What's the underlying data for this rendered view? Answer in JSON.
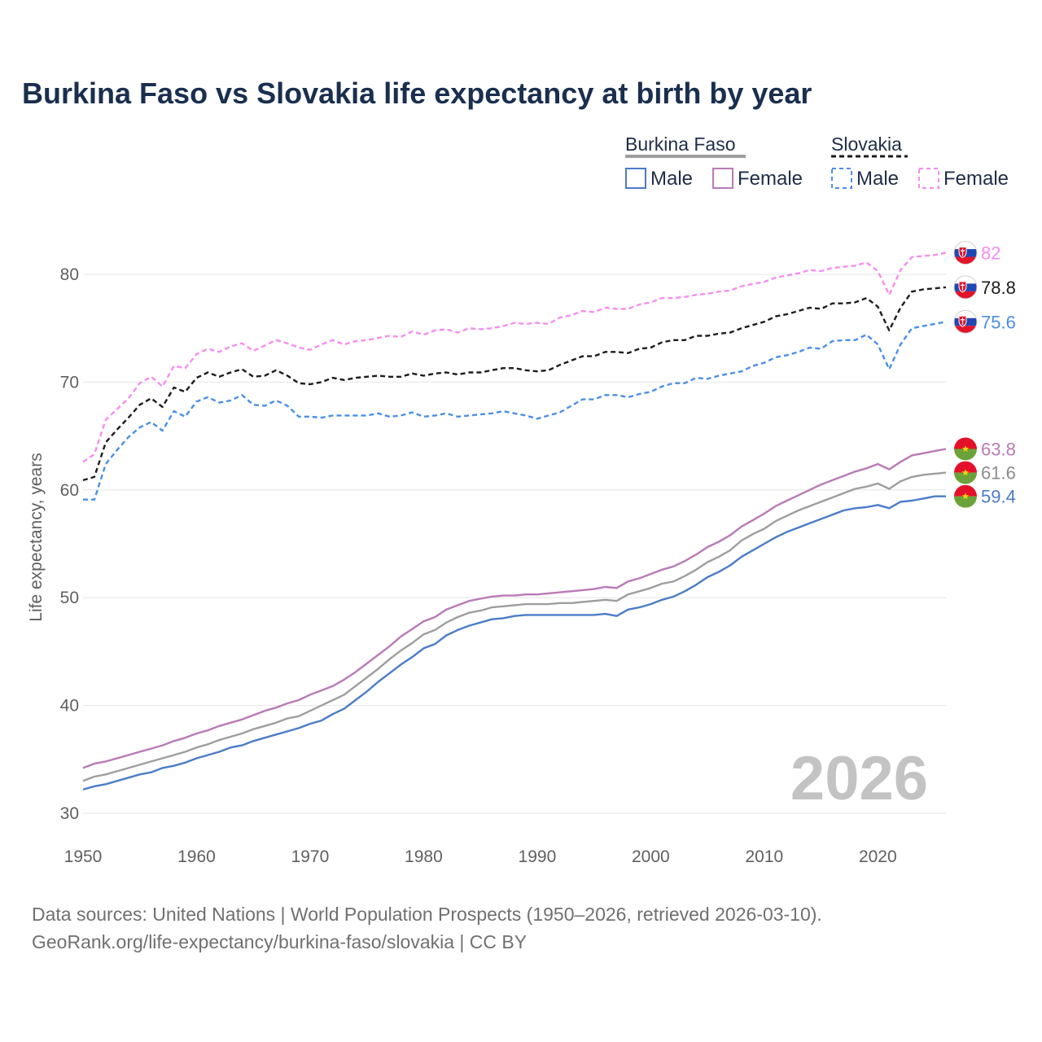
{
  "chart_data": {
    "type": "line",
    "title": "Burkina Faso vs Slovakia life expectancy at birth by year",
    "xlabel": "",
    "ylabel": "Life expectancy, years",
    "xlim": [
      1950,
      2026
    ],
    "ylim": [
      30,
      82
    ],
    "x_ticks": [
      "1950",
      "1960",
      "1970",
      "1980",
      "1990",
      "2000",
      "2010",
      "2020"
    ],
    "y_ticks": [
      "30",
      "40",
      "50",
      "60",
      "70",
      "80"
    ],
    "current_year": "2026",
    "legend": {
      "group1": "Burkina Faso",
      "group2": "Slovakia",
      "male_label": "Male",
      "female_label": "Female"
    },
    "series": [
      {
        "name": "Slovakia Female",
        "country": "Slovakia",
        "sex": "Female",
        "color": "#f78cf0",
        "dash": true,
        "x": [
          1950,
          1951,
          1952,
          1953,
          1954,
          1955,
          1956,
          1957,
          1958,
          1959,
          1960,
          1961,
          1962,
          1963,
          1964,
          1965,
          1966,
          1967,
          1968,
          1969,
          1970,
          1971,
          1972,
          1973,
          1974,
          1975,
          1976,
          1977,
          1978,
          1979,
          1980,
          1981,
          1982,
          1983,
          1984,
          1985,
          1986,
          1987,
          1988,
          1989,
          1990,
          1991,
          1992,
          1993,
          1994,
          1995,
          1996,
          1997,
          1998,
          1999,
          2000,
          2001,
          2002,
          2003,
          2004,
          2005,
          2006,
          2007,
          2008,
          2009,
          2010,
          2011,
          2012,
          2013,
          2014,
          2015,
          2016,
          2017,
          2018,
          2019,
          2020,
          2021,
          2022,
          2023,
          2024,
          2025,
          2026
        ],
        "values": [
          62.6,
          63.3,
          66.5,
          67.5,
          68.5,
          69.9,
          70.5,
          69.6,
          71.5,
          71.3,
          72.6,
          73.1,
          72.8,
          73.3,
          73.6,
          72.9,
          73.4,
          73.9,
          73.6,
          73.2,
          73.0,
          73.5,
          73.9,
          73.5,
          73.8,
          73.9,
          74.1,
          74.3,
          74.2,
          74.7,
          74.4,
          74.8,
          74.9,
          74.6,
          75.0,
          74.9,
          75.0,
          75.2,
          75.5,
          75.4,
          75.5,
          75.4,
          76.0,
          76.2,
          76.6,
          76.5,
          76.9,
          76.8,
          76.8,
          77.2,
          77.4,
          77.8,
          77.8,
          77.9,
          78.1,
          78.2,
          78.4,
          78.5,
          78.9,
          79.1,
          79.3,
          79.7,
          79.9,
          80.1,
          80.4,
          80.3,
          80.6,
          80.7,
          80.8,
          81.1,
          80.3,
          78.1,
          80.4,
          81.6,
          81.7,
          81.8,
          82.0
        ]
      },
      {
        "name": "Slovakia Total",
        "country": "Slovakia",
        "sex": "Total",
        "color": "#1c1c1c",
        "dash": true,
        "x": [
          1950,
          1951,
          1952,
          1953,
          1954,
          1955,
          1956,
          1957,
          1958,
          1959,
          1960,
          1961,
          1962,
          1963,
          1964,
          1965,
          1966,
          1967,
          1968,
          1969,
          1970,
          1971,
          1972,
          1973,
          1974,
          1975,
          1976,
          1977,
          1978,
          1979,
          1980,
          1981,
          1982,
          1983,
          1984,
          1985,
          1986,
          1987,
          1988,
          1989,
          1990,
          1991,
          1992,
          1993,
          1994,
          1995,
          1996,
          1997,
          1998,
          1999,
          2000,
          2001,
          2002,
          2003,
          2004,
          2005,
          2006,
          2007,
          2008,
          2009,
          2010,
          2011,
          2012,
          2013,
          2014,
          2015,
          2016,
          2017,
          2018,
          2019,
          2020,
          2021,
          2022,
          2023,
          2024,
          2025,
          2026
        ],
        "values": [
          60.9,
          61.2,
          64.4,
          65.6,
          66.7,
          67.9,
          68.5,
          67.7,
          69.5,
          69.1,
          70.4,
          70.9,
          70.5,
          70.9,
          71.2,
          70.5,
          70.6,
          71.1,
          70.6,
          69.9,
          69.8,
          70.0,
          70.4,
          70.2,
          70.4,
          70.5,
          70.6,
          70.5,
          70.5,
          70.8,
          70.6,
          70.8,
          70.9,
          70.7,
          70.9,
          70.9,
          71.1,
          71.3,
          71.3,
          71.1,
          71.0,
          71.1,
          71.6,
          72.0,
          72.4,
          72.4,
          72.8,
          72.8,
          72.7,
          73.1,
          73.2,
          73.7,
          73.9,
          73.9,
          74.3,
          74.3,
          74.5,
          74.6,
          75.0,
          75.3,
          75.6,
          76.1,
          76.3,
          76.6,
          76.9,
          76.8,
          77.3,
          77.3,
          77.4,
          77.8,
          77.0,
          74.8,
          76.9,
          78.4,
          78.6,
          78.7,
          78.8
        ]
      },
      {
        "name": "Slovakia Male",
        "country": "Slovakia",
        "sex": "Male",
        "color": "#4a8fe8",
        "dash": true,
        "x": [
          1950,
          1951,
          1952,
          1953,
          1954,
          1955,
          1956,
          1957,
          1958,
          1959,
          1960,
          1961,
          1962,
          1963,
          1964,
          1965,
          1966,
          1967,
          1968,
          1969,
          1970,
          1971,
          1972,
          1973,
          1974,
          1975,
          1976,
          1977,
          1978,
          1979,
          1980,
          1981,
          1982,
          1983,
          1984,
          1985,
          1986,
          1987,
          1988,
          1989,
          1990,
          1991,
          1992,
          1993,
          1994,
          1995,
          1996,
          1997,
          1998,
          1999,
          2000,
          2001,
          2002,
          2003,
          2004,
          2005,
          2006,
          2007,
          2008,
          2009,
          2010,
          2011,
          2012,
          2013,
          2014,
          2015,
          2016,
          2017,
          2018,
          2019,
          2020,
          2021,
          2022,
          2023,
          2024,
          2025,
          2026
        ],
        "values": [
          59.1,
          59.1,
          62.4,
          63.7,
          64.9,
          65.8,
          66.3,
          65.5,
          67.3,
          66.8,
          68.2,
          68.6,
          68.1,
          68.3,
          68.8,
          67.9,
          67.8,
          68.3,
          67.8,
          66.8,
          66.8,
          66.7,
          66.9,
          66.9,
          66.9,
          66.9,
          67.1,
          66.8,
          66.9,
          67.2,
          66.8,
          66.9,
          67.1,
          66.8,
          66.9,
          67.0,
          67.1,
          67.3,
          67.1,
          66.9,
          66.6,
          66.9,
          67.2,
          67.8,
          68.4,
          68.4,
          68.8,
          68.8,
          68.6,
          68.9,
          69.1,
          69.6,
          69.9,
          69.9,
          70.4,
          70.3,
          70.6,
          70.8,
          71.0,
          71.5,
          71.8,
          72.3,
          72.5,
          72.8,
          73.2,
          73.1,
          73.8,
          73.9,
          73.9,
          74.4,
          73.5,
          71.2,
          73.5,
          75.0,
          75.2,
          75.4,
          75.6
        ]
      },
      {
        "name": "Burkina Faso Female",
        "country": "Burkina Faso",
        "sex": "Female",
        "color": "#b97ab6",
        "dash": false,
        "x": [
          1950,
          1951,
          1952,
          1953,
          1954,
          1955,
          1956,
          1957,
          1958,
          1959,
          1960,
          1961,
          1962,
          1963,
          1964,
          1965,
          1966,
          1967,
          1968,
          1969,
          1970,
          1971,
          1972,
          1973,
          1974,
          1975,
          1976,
          1977,
          1978,
          1979,
          1980,
          1981,
          1982,
          1983,
          1984,
          1985,
          1986,
          1987,
          1988,
          1989,
          1990,
          1991,
          1992,
          1993,
          1994,
          1995,
          1996,
          1997,
          1998,
          1999,
          2000,
          2001,
          2002,
          2003,
          2004,
          2005,
          2006,
          2007,
          2008,
          2009,
          2010,
          2011,
          2012,
          2013,
          2014,
          2015,
          2016,
          2017,
          2018,
          2019,
          2020,
          2021,
          2022,
          2023,
          2024,
          2025,
          2026
        ],
        "values": [
          34.2,
          34.6,
          34.8,
          35.1,
          35.4,
          35.7,
          36.0,
          36.3,
          36.7,
          37.0,
          37.4,
          37.7,
          38.1,
          38.4,
          38.7,
          39.1,
          39.5,
          39.8,
          40.2,
          40.5,
          41.0,
          41.4,
          41.8,
          42.4,
          43.1,
          43.9,
          44.7,
          45.5,
          46.4,
          47.1,
          47.8,
          48.2,
          48.9,
          49.3,
          49.7,
          49.9,
          50.1,
          50.2,
          50.2,
          50.3,
          50.3,
          50.4,
          50.5,
          50.6,
          50.7,
          50.8,
          51.0,
          50.9,
          51.5,
          51.8,
          52.2,
          52.6,
          52.9,
          53.4,
          54.0,
          54.7,
          55.2,
          55.8,
          56.6,
          57.2,
          57.8,
          58.5,
          59.0,
          59.5,
          60.0,
          60.5,
          60.9,
          61.3,
          61.7,
          62.0,
          62.4,
          61.9,
          62.6,
          63.2,
          63.4,
          63.6,
          63.8
        ]
      },
      {
        "name": "Burkina Faso Total",
        "country": "Burkina Faso",
        "sex": "Total",
        "color": "#9e9e9e",
        "dash": false,
        "x": [
          1950,
          1951,
          1952,
          1953,
          1954,
          1955,
          1956,
          1957,
          1958,
          1959,
          1960,
          1961,
          1962,
          1963,
          1964,
          1965,
          1966,
          1967,
          1968,
          1969,
          1970,
          1971,
          1972,
          1973,
          1974,
          1975,
          1976,
          1977,
          1978,
          1979,
          1980,
          1981,
          1982,
          1983,
          1984,
          1985,
          1986,
          1987,
          1988,
          1989,
          1990,
          1991,
          1992,
          1993,
          1994,
          1995,
          1996,
          1997,
          1998,
          1999,
          2000,
          2001,
          2002,
          2003,
          2004,
          2005,
          2006,
          2007,
          2008,
          2009,
          2010,
          2011,
          2012,
          2013,
          2014,
          2015,
          2016,
          2017,
          2018,
          2019,
          2020,
          2021,
          2022,
          2023,
          2024,
          2025,
          2026
        ],
        "values": [
          33.0,
          33.4,
          33.6,
          33.9,
          34.2,
          34.5,
          34.8,
          35.1,
          35.4,
          35.7,
          36.1,
          36.4,
          36.8,
          37.1,
          37.4,
          37.8,
          38.1,
          38.4,
          38.8,
          39.0,
          39.5,
          40.0,
          40.5,
          41.0,
          41.8,
          42.6,
          43.4,
          44.3,
          45.1,
          45.8,
          46.6,
          47.0,
          47.7,
          48.2,
          48.6,
          48.8,
          49.1,
          49.2,
          49.3,
          49.4,
          49.4,
          49.4,
          49.5,
          49.5,
          49.6,
          49.7,
          49.8,
          49.7,
          50.3,
          50.6,
          50.9,
          51.3,
          51.5,
          52.0,
          52.6,
          53.3,
          53.8,
          54.4,
          55.3,
          55.9,
          56.4,
          57.1,
          57.6,
          58.1,
          58.5,
          58.9,
          59.3,
          59.7,
          60.1,
          60.3,
          60.6,
          60.1,
          60.8,
          61.2,
          61.4,
          61.5,
          61.6
        ]
      },
      {
        "name": "Burkina Faso Male",
        "country": "Burkina Faso",
        "sex": "Male",
        "color": "#4b7cc8",
        "dash": false,
        "x": [
          1950,
          1951,
          1952,
          1953,
          1954,
          1955,
          1956,
          1957,
          1958,
          1959,
          1960,
          1961,
          1962,
          1963,
          1964,
          1965,
          1966,
          1967,
          1968,
          1969,
          1970,
          1971,
          1972,
          1973,
          1974,
          1975,
          1976,
          1977,
          1978,
          1979,
          1980,
          1981,
          1982,
          1983,
          1984,
          1985,
          1986,
          1987,
          1988,
          1989,
          1990,
          1991,
          1992,
          1993,
          1994,
          1995,
          1996,
          1997,
          1998,
          1999,
          2000,
          2001,
          2002,
          2003,
          2004,
          2005,
          2006,
          2007,
          2008,
          2009,
          2010,
          2011,
          2012,
          2013,
          2014,
          2015,
          2016,
          2017,
          2018,
          2019,
          2020,
          2021,
          2022,
          2023,
          2024,
          2025,
          2026
        ],
        "values": [
          32.2,
          32.5,
          32.7,
          33.0,
          33.3,
          33.6,
          33.8,
          34.2,
          34.4,
          34.7,
          35.1,
          35.4,
          35.7,
          36.1,
          36.3,
          36.7,
          37.0,
          37.3,
          37.6,
          37.9,
          38.3,
          38.6,
          39.2,
          39.7,
          40.5,
          41.3,
          42.2,
          43.0,
          43.8,
          44.5,
          45.3,
          45.7,
          46.5,
          47.0,
          47.4,
          47.7,
          48.0,
          48.1,
          48.3,
          48.4,
          48.4,
          48.4,
          48.4,
          48.4,
          48.4,
          48.4,
          48.5,
          48.3,
          48.9,
          49.1,
          49.4,
          49.8,
          50.1,
          50.6,
          51.2,
          51.9,
          52.4,
          53.0,
          53.8,
          54.4,
          55.0,
          55.6,
          56.1,
          56.5,
          56.9,
          57.3,
          57.7,
          58.1,
          58.3,
          58.4,
          58.6,
          58.3,
          58.9,
          59.0,
          59.2,
          59.4,
          59.4
        ]
      }
    ],
    "end_labels": [
      {
        "series": "Slovakia Female",
        "text": "82",
        "color": "#f78cf0"
      },
      {
        "series": "Slovakia Total",
        "text": "78.8",
        "color": "#1c1c1c"
      },
      {
        "series": "Slovakia Male",
        "text": "75.6",
        "color": "#4a8fe8"
      },
      {
        "series": "Burkina Faso Female",
        "text": "63.8",
        "color": "#b97ab6"
      },
      {
        "series": "Burkina Faso Total",
        "text": "61.6",
        "color": "#8c8c8c"
      },
      {
        "series": "Burkina Faso Male",
        "text": "59.4",
        "color": "#4b7cc8"
      }
    ]
  },
  "footer": {
    "line1": "Data sources: United Nations | World Population Prospects (1950–2026, retrieved 2026-03-10).",
    "line2": "GeoRank.org/life-expectancy/burkina-faso/slovakia | CC BY"
  }
}
